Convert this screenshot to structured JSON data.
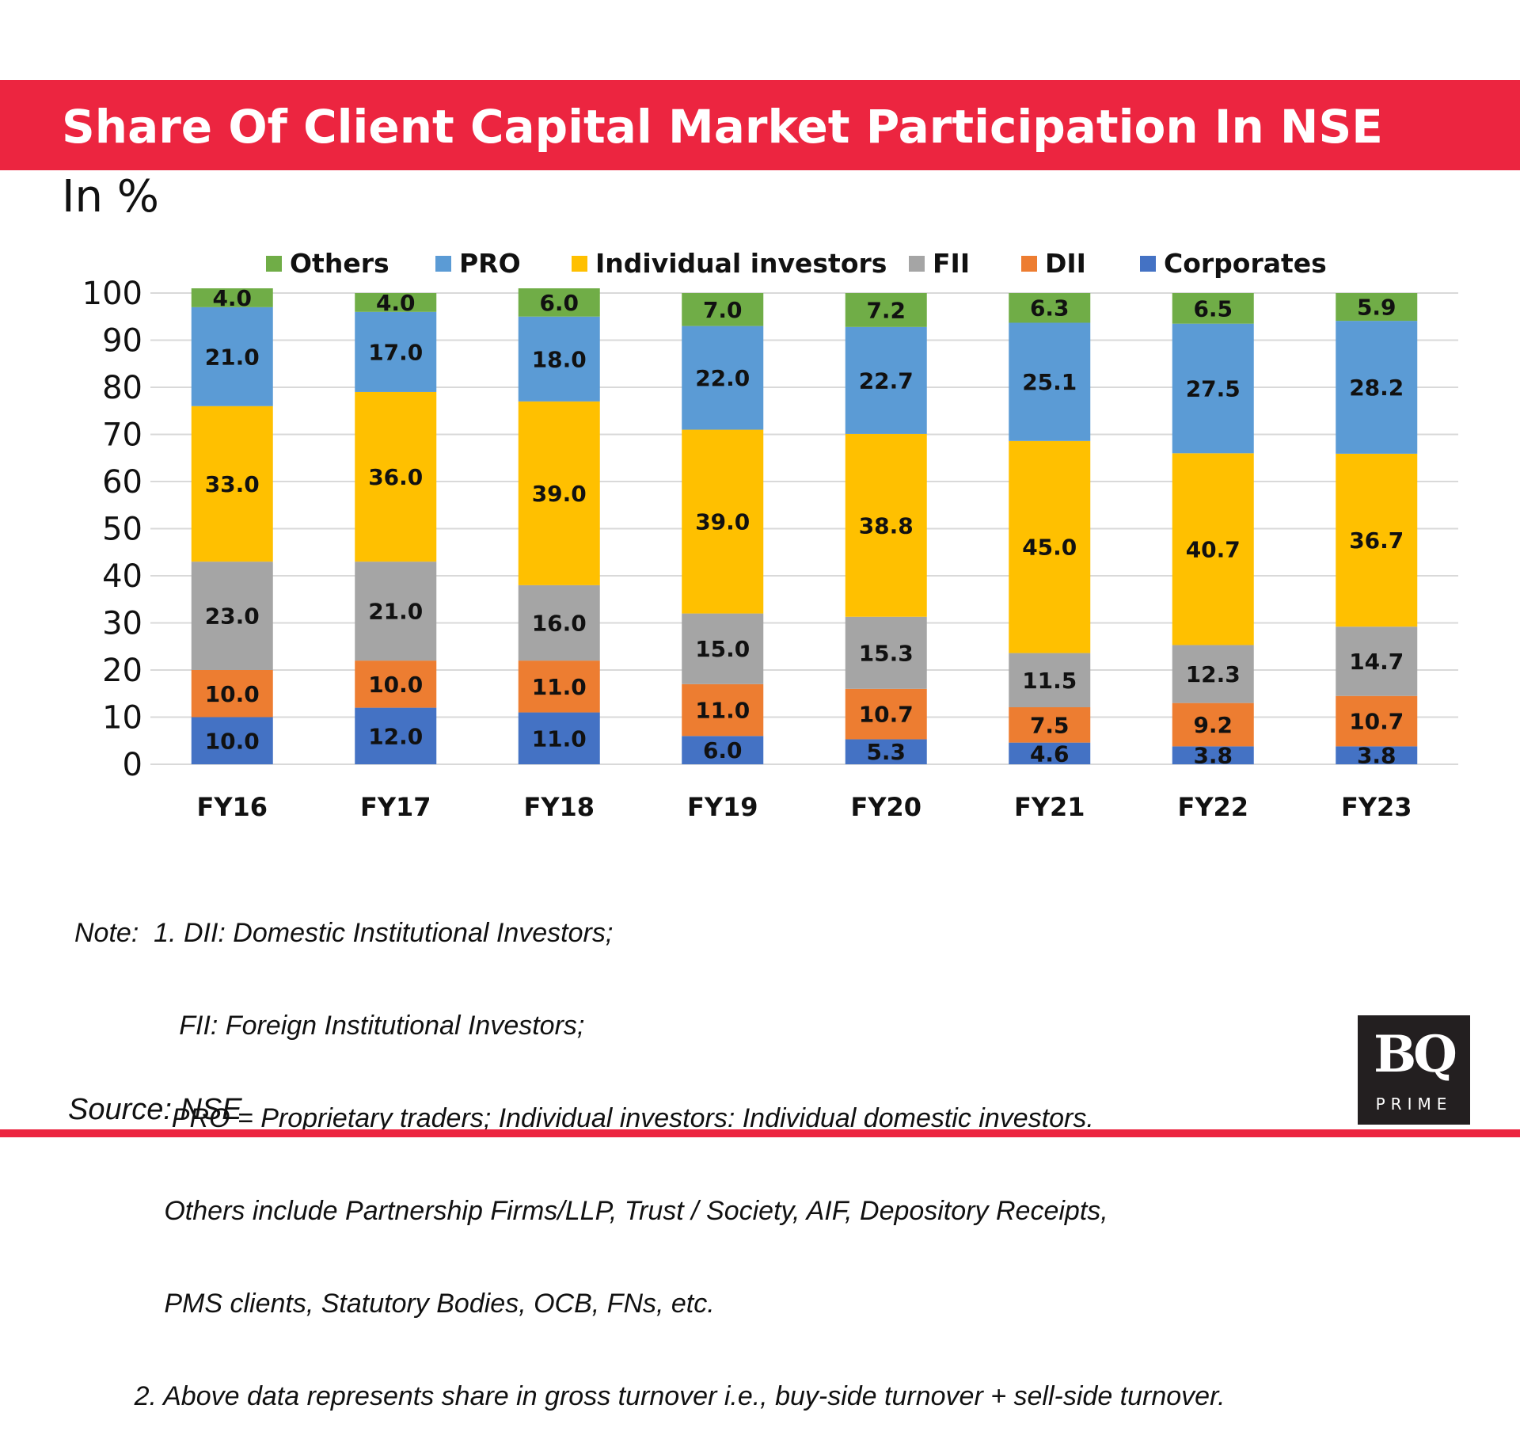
{
  "header": {
    "title": "Share Of Client Capital Market Participation In NSE",
    "unit": "In %"
  },
  "chart_data": {
    "type": "stacked-bar",
    "categories": [
      "FY16",
      "FY17",
      "FY18",
      "FY19",
      "FY20",
      "FY21",
      "FY22",
      "FY23"
    ],
    "ylim": [
      0,
      100
    ],
    "yticks": [
      0,
      10,
      20,
      30,
      40,
      50,
      60,
      70,
      80,
      90,
      100
    ],
    "legend_position": "top",
    "grid": true,
    "series": [
      {
        "name": "Corporates",
        "color": "#4472c4",
        "values": [
          10.0,
          12.0,
          11.0,
          6.0,
          5.3,
          4.6,
          3.8,
          3.8
        ]
      },
      {
        "name": "DII",
        "color": "#ed7d31",
        "values": [
          10.0,
          10.0,
          11.0,
          11.0,
          10.7,
          7.5,
          9.2,
          10.7
        ]
      },
      {
        "name": "FII",
        "color": "#a5a5a5",
        "values": [
          23.0,
          21.0,
          16.0,
          15.0,
          15.3,
          11.5,
          12.3,
          14.7
        ]
      },
      {
        "name": "Individual investors",
        "color": "#ffc000",
        "values": [
          33.0,
          36.0,
          39.0,
          39.0,
          38.8,
          45.0,
          40.7,
          36.7
        ]
      },
      {
        "name": "PRO",
        "color": "#5b9bd5",
        "values": [
          21.0,
          17.0,
          18.0,
          22.0,
          22.7,
          25.1,
          27.5,
          28.2
        ]
      },
      {
        "name": "Others",
        "color": "#70ad47",
        "values": [
          4.0,
          4.0,
          6.0,
          7.0,
          7.2,
          6.3,
          6.5,
          5.9
        ]
      }
    ],
    "legend_order": [
      "Others",
      "PRO",
      "Individual investors",
      "FII",
      "DII",
      "Corporates"
    ]
  },
  "notes": [
    "Note:  1. DII: Domestic Institutional Investors;",
    "              FII: Foreign Institutional Investors;",
    "             PRO = Proprietary traders; Individual investors: Individual domestic investors.",
    "            Others include Partnership Firms/LLP, Trust / Society, AIF, Depository Receipts,",
    "            PMS clients, Statutory Bodies, OCB, FNs, etc.",
    "        2. Above data represents share in gross turnover i.e., buy-side turnover + sell-side turnover."
  ],
  "source": "Source: NSE",
  "logo": {
    "main": "BQ",
    "sub": "PRIME"
  }
}
